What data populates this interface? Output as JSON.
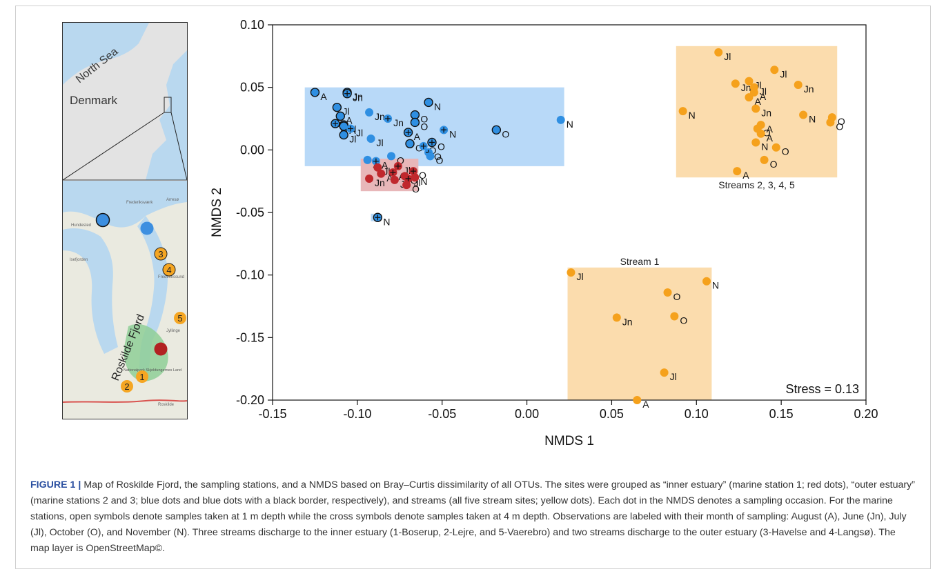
{
  "map": {
    "labels": {
      "sea": "North Sea",
      "country": "Denmark",
      "fjord": "Roskilde Fjord",
      "towns": [
        "Hundested",
        "Frederiksværk",
        "Frederikssund",
        "Roskilde",
        "Jyllinge",
        "Arresø",
        "Isefjorden",
        "Nationalpark Skjoldungernes Land"
      ]
    },
    "stream_numbers": [
      "1",
      "2",
      "3",
      "4",
      "5"
    ],
    "colors": {
      "sea": "#b9d8ef",
      "land_top": "#dcdcdc",
      "land": "#eaeae0",
      "forest": "#8fcf96",
      "inner": "#b22222",
      "outer_blue": "#3d8fe0",
      "stream": "#f5a623"
    }
  },
  "chart_data": {
    "type": "scatter",
    "xlabel": "NMDS 1",
    "ylabel": "NMDS 2",
    "xlim": [
      -0.15,
      0.2
    ],
    "ylim": [
      -0.2,
      0.1
    ],
    "x_ticks": [
      "-0.15",
      "-0.10",
      "-0.05",
      "0.00",
      "0.05",
      "0.10",
      "0.15",
      "0.20"
    ],
    "y_ticks": [
      "0.10",
      "0.05",
      "0.00",
      "-0.05",
      "-0.10",
      "-0.15",
      "-0.20"
    ],
    "stress_label": "Stress = 0.13",
    "region_labels": [
      "Streams 2, 3, 4, 5",
      "Stream 1"
    ],
    "colors": {
      "red": "#c0282d",
      "blue": "#2f8fe2",
      "orange": "#f5a11c",
      "blue_box": "#b8d9f8",
      "red_box": "#e8b7b9",
      "orange_box": "#fbdcad"
    },
    "series": [
      {
        "group": "outer estuary station 3",
        "points": [
          {
            "x": -0.125,
            "y": 0.046,
            "label": "A",
            "cross": false
          },
          {
            "x": -0.106,
            "y": 0.046,
            "label": "Jn",
            "cross": false
          },
          {
            "x": -0.106,
            "y": 0.045,
            "label": "Jn",
            "cross": true
          },
          {
            "x": -0.112,
            "y": 0.034,
            "label": "Jl",
            "cross": false
          },
          {
            "x": -0.11,
            "y": 0.027,
            "label": "A",
            "cross": false
          },
          {
            "x": -0.113,
            "y": 0.021,
            "label": "A",
            "cross": true
          },
          {
            "x": -0.108,
            "y": 0.02,
            "label": "Jl",
            "cross": true
          },
          {
            "x": -0.108,
            "y": 0.019,
            "label": "A",
            "cross": false
          },
          {
            "x": -0.108,
            "y": 0.012,
            "label": "Jl",
            "cross": false
          },
          {
            "x": -0.058,
            "y": 0.038,
            "label": "N",
            "cross": false
          },
          {
            "x": -0.066,
            "y": 0.028,
            "label": "O",
            "cross": false
          },
          {
            "x": -0.066,
            "y": 0.022,
            "label": "O",
            "cross": false
          },
          {
            "x": -0.07,
            "y": 0.014,
            "label": "A",
            "cross": true
          },
          {
            "x": -0.056,
            "y": 0.006,
            "label": "O",
            "cross": true
          },
          {
            "x": -0.069,
            "y": 0.005,
            "label": "O",
            "cross": false
          },
          {
            "x": -0.018,
            "y": 0.016,
            "label": "O",
            "cross": false
          },
          {
            "x": -0.088,
            "y": -0.054,
            "label": "N",
            "cross": true
          }
        ]
      },
      {
        "group": "outer estuary station 2",
        "points": [
          {
            "x": -0.093,
            "y": 0.03,
            "label": "Jn",
            "cross": false
          },
          {
            "x": -0.082,
            "y": 0.025,
            "label": "Jn",
            "cross": true
          },
          {
            "x": -0.104,
            "y": 0.017,
            "label": "Jl",
            "cross": true
          },
          {
            "x": -0.092,
            "y": 0.009,
            "label": "Jl",
            "cross": false
          },
          {
            "x": -0.094,
            "y": -0.008,
            "label": "A",
            "cross": false
          },
          {
            "x": -0.089,
            "y": -0.009,
            "label": "A",
            "cross": true
          },
          {
            "x": -0.08,
            "y": -0.005,
            "label": "O",
            "cross": false
          },
          {
            "x": -0.061,
            "y": 0.003,
            "label": "O",
            "cross": true
          },
          {
            "x": -0.058,
            "y": -0.002,
            "label": "O",
            "cross": true
          },
          {
            "x": -0.057,
            "y": -0.005,
            "label": "O",
            "cross": false
          },
          {
            "x": -0.049,
            "y": 0.016,
            "label": "N",
            "cross": true
          },
          {
            "x": 0.02,
            "y": 0.024,
            "label": "N",
            "cross": false
          }
        ]
      },
      {
        "group": "inner estuary",
        "points": [
          {
            "x": -0.088,
            "y": -0.014,
            "label": "Jl",
            "cross": false
          },
          {
            "x": -0.076,
            "y": -0.013,
            "label": "Jl",
            "cross": true
          },
          {
            "x": -0.086,
            "y": -0.019,
            "label": "A",
            "cross": false
          },
          {
            "x": -0.079,
            "y": -0.018,
            "label": "A",
            "cross": true
          },
          {
            "x": -0.067,
            "y": -0.017,
            "label": "O",
            "cross": true
          },
          {
            "x": -0.072,
            "y": -0.021,
            "label": "O",
            "cross": false
          },
          {
            "x": -0.093,
            "y": -0.023,
            "label": "Jn",
            "cross": false
          },
          {
            "x": -0.078,
            "y": -0.024,
            "label": "Jn",
            "cross": false
          },
          {
            "x": -0.07,
            "y": -0.023,
            "label": "Jl",
            "cross": true
          },
          {
            "x": -0.071,
            "y": -0.028,
            "label": "O",
            "cross": false
          },
          {
            "x": -0.066,
            "y": -0.022,
            "label": "N",
            "cross": false
          }
        ]
      },
      {
        "group": "streams 2-5",
        "points": [
          {
            "x": 0.113,
            "y": 0.078,
            "label": "Jl"
          },
          {
            "x": 0.092,
            "y": 0.031,
            "label": "N"
          },
          {
            "x": 0.146,
            "y": 0.064,
            "label": "Jl"
          },
          {
            "x": 0.16,
            "y": 0.052,
            "label": "Jn"
          },
          {
            "x": 0.123,
            "y": 0.053,
            "label": "Jn"
          },
          {
            "x": 0.131,
            "y": 0.055,
            "label": "Jl"
          },
          {
            "x": 0.134,
            "y": 0.05,
            "label": "Jl"
          },
          {
            "x": 0.134,
            "y": 0.046,
            "label": "A"
          },
          {
            "x": 0.131,
            "y": 0.042,
            "label": "A"
          },
          {
            "x": 0.135,
            "y": 0.033,
            "label": "Jn"
          },
          {
            "x": 0.163,
            "y": 0.028,
            "label": "N"
          },
          {
            "x": 0.18,
            "y": 0.026,
            "label": "O"
          },
          {
            "x": 0.179,
            "y": 0.022,
            "label": "O"
          },
          {
            "x": 0.138,
            "y": 0.02,
            "label": "A"
          },
          {
            "x": 0.136,
            "y": 0.017,
            "label": "O"
          },
          {
            "x": 0.138,
            "y": 0.013,
            "label": "A"
          },
          {
            "x": 0.135,
            "y": 0.006,
            "label": "N"
          },
          {
            "x": 0.147,
            "y": 0.002,
            "label": "O"
          },
          {
            "x": 0.14,
            "y": -0.008,
            "label": "O"
          },
          {
            "x": 0.124,
            "y": -0.017,
            "label": "A"
          }
        ]
      },
      {
        "group": "stream 1",
        "points": [
          {
            "x": 0.026,
            "y": -0.098,
            "label": "Jl"
          },
          {
            "x": 0.106,
            "y": -0.105,
            "label": "N"
          },
          {
            "x": 0.083,
            "y": -0.114,
            "label": "O"
          },
          {
            "x": 0.087,
            "y": -0.133,
            "label": "O"
          },
          {
            "x": 0.053,
            "y": -0.134,
            "label": "Jn"
          },
          {
            "x": 0.081,
            "y": -0.178,
            "label": "Jl"
          },
          {
            "x": 0.065,
            "y": -0.2,
            "label": "A"
          }
        ]
      }
    ],
    "boxes": [
      {
        "color": "blue_box",
        "x": [
          -0.131,
          0.022
        ],
        "y": [
          -0.013,
          0.05
        ]
      },
      {
        "color": "red_box",
        "x": [
          -0.098,
          -0.064
        ],
        "y": [
          -0.033,
          -0.007
        ]
      },
      {
        "color": "blue_box",
        "x": [
          -0.092,
          -0.086
        ],
        "y": [
          -0.057,
          -0.051
        ]
      },
      {
        "color": "orange_box",
        "x": [
          0.088,
          0.183
        ],
        "y": [
          -0.022,
          0.083
        ]
      },
      {
        "color": "orange_box",
        "x": [
          0.024,
          0.109
        ],
        "y": [
          -0.2,
          -0.094
        ]
      }
    ]
  },
  "caption": {
    "lead": "FIGURE 1",
    "separator": "|",
    "text": "Map of Roskilde Fjord, the sampling stations, and a NMDS based on Bray–Curtis dissimilarity of all OTUs. The sites were grouped as “inner estuary” (marine station 1; red dots), “outer estuary” (marine stations 2 and 3; blue dots and blue dots with a black border, respectively), and streams (all five stream sites; yellow dots). Each dot in the NMDS denotes a sampling occasion. For the marine stations, open symbols denote samples taken at 1 m depth while the cross symbols denote samples taken at 4 m depth. Observations are labeled with their month of sampling: August (A), June (Jn), July (Jl), October (O), and November (N). Three streams discharge to the inner estuary (1-Boserup, 2-Lejre, and 5-Vaerebro) and two streams discharge to the outer estuary (3-Havelse and 4-Langsø). The map layer is OpenStreetMap©."
  }
}
